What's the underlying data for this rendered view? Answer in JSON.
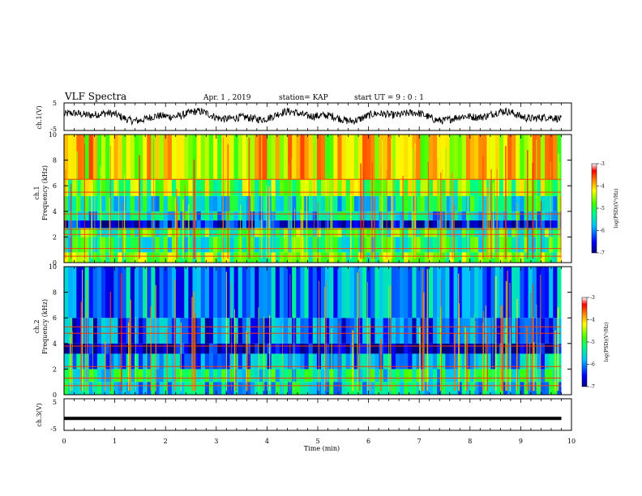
{
  "header": {
    "title": "VLF Spectra",
    "date": "Apr. 1 , 2019",
    "station": "station= KAP",
    "start": "start UT = 9 : 0 : 1"
  },
  "chart_data": [
    {
      "type": "line",
      "panel": "ch1-waveform",
      "ylabel": "ch.1(V)",
      "ylim": [
        -5,
        5
      ],
      "yticks": [
        "5",
        "-5"
      ],
      "xlim": [
        0,
        10
      ],
      "series_color": "#000000"
    },
    {
      "type": "heatmap",
      "panel": "ch1-spectrogram",
      "ylabel": "ch.1 Frequency (kHz)",
      "ylim": [
        0,
        10
      ],
      "yticks": [
        "0",
        "2",
        "4",
        "6",
        "8",
        "10"
      ],
      "xlim": [
        0,
        9.8
      ],
      "colorbar": {
        "label": "log(PSD)(V²/Hz)",
        "range": [
          -7,
          -3
        ],
        "ticks": [
          "-3",
          "-4",
          "-5",
          "-6",
          "-7"
        ]
      },
      "bands_khz": [
        {
          "from": 0.0,
          "to": 0.8,
          "level": -4.8
        },
        {
          "from": 0.8,
          "to": 2.0,
          "level": -5.2
        },
        {
          "from": 2.0,
          "to": 2.7,
          "level": -5.0
        },
        {
          "from": 2.7,
          "to": 3.3,
          "level": -6.6
        },
        {
          "from": 3.3,
          "to": 4.0,
          "level": -5.6
        },
        {
          "from": 4.0,
          "to": 5.2,
          "level": -5.4
        },
        {
          "from": 5.2,
          "to": 6.5,
          "level": -4.7
        },
        {
          "from": 6.5,
          "to": 10.0,
          "level": -4.2
        }
      ],
      "lines_khz": [
        0.5,
        1.1,
        2.2,
        2.6,
        3.8,
        5.5,
        6.5
      ]
    },
    {
      "type": "heatmap",
      "panel": "ch2-spectrogram",
      "ylabel": "ch.2 Frequency (kHz)",
      "ylim": [
        0,
        10
      ],
      "yticks": [
        "0",
        "2",
        "4",
        "6",
        "8",
        "10"
      ],
      "xlim": [
        0,
        9.8
      ],
      "colorbar": {
        "label": "log(PSD)(V²/Hz)",
        "range": [
          -7,
          -3
        ],
        "ticks": [
          "-3",
          "-4",
          "-5",
          "-6",
          "-7"
        ]
      },
      "bands_khz": [
        {
          "from": 0.0,
          "to": 1.0,
          "level": -5.6
        },
        {
          "from": 1.0,
          "to": 2.0,
          "level": -5.4
        },
        {
          "from": 2.0,
          "to": 3.2,
          "level": -5.9
        },
        {
          "from": 3.2,
          "to": 4.0,
          "level": -6.8
        },
        {
          "from": 4.0,
          "to": 6.0,
          "level": -6.2
        },
        {
          "from": 6.0,
          "to": 10.0,
          "level": -6.0
        }
      ],
      "lines_khz": [
        0.7,
        1.3,
        2.2,
        3.8,
        4.8,
        5.3
      ]
    },
    {
      "type": "line",
      "panel": "ch3-waveform",
      "ylabel": "ch.3(V)",
      "ylim": [
        -5,
        5
      ],
      "yticks": [
        "5",
        "-5"
      ],
      "xlim": [
        0,
        10
      ],
      "constant_value": -1.2,
      "series_color": "#000000"
    }
  ],
  "xaxis": {
    "label": "Time (min)",
    "ticks": [
      "0",
      "1",
      "2",
      "3",
      "4",
      "5",
      "6",
      "7",
      "8",
      "9",
      "10"
    ],
    "range": [
      0,
      10
    ]
  }
}
